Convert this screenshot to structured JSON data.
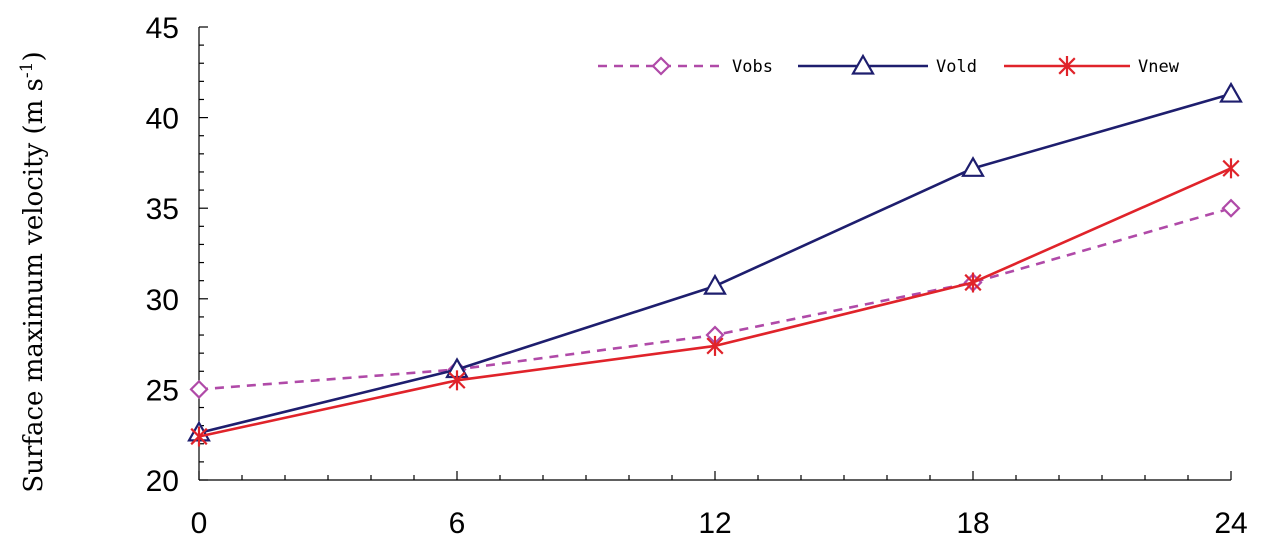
{
  "colors": {
    "obs": "#b04aa8",
    "old": "#1e1e6e",
    "new": "#e0232a",
    "axis": "#000000"
  },
  "chart_data": {
    "type": "line",
    "title": "",
    "xlabel": "",
    "ylabel": "Surface maximum velocity (m s",
    "ylabel_sup": "-1",
    "ylabel_end": ")",
    "x": [
      0,
      6,
      12,
      18,
      24
    ],
    "x_tick_labels": [
      "0",
      "6",
      "12",
      "18",
      "24"
    ],
    "xlim": [
      0,
      24
    ],
    "ylim": [
      20,
      45
    ],
    "y_ticks": [
      20,
      25,
      30,
      35,
      40,
      45
    ],
    "y_tick_labels": [
      "20",
      "25",
      "30",
      "35",
      "40",
      "45"
    ],
    "grid": false,
    "legend_position": "top-right",
    "series": [
      {
        "name": "Vobs",
        "values": [
          25.0,
          26.1,
          28.0,
          30.9,
          35.0
        ],
        "color_key": "obs",
        "dash": true,
        "marker": "diamond-icon"
      },
      {
        "name": "Vold",
        "values": [
          22.6,
          26.1,
          30.7,
          37.2,
          41.3
        ],
        "color_key": "old",
        "dash": false,
        "marker": "triangle-icon"
      },
      {
        "name": "Vnew",
        "values": [
          22.4,
          25.5,
          27.4,
          30.9,
          37.2
        ],
        "color_key": "new",
        "dash": false,
        "marker": "asterisk-icon"
      }
    ]
  }
}
